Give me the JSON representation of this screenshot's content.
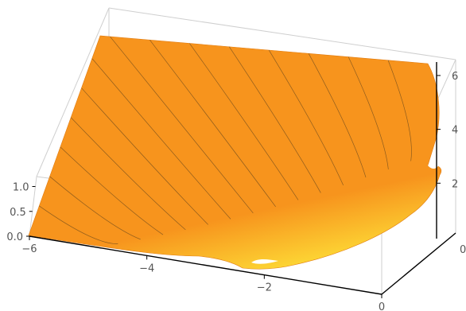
{
  "chart_data": {
    "type": "surface3d",
    "title": "",
    "axes": {
      "x": {
        "label": "",
        "range": [
          -6,
          0
        ],
        "ticks": [
          "-6",
          "-4",
          "-2",
          "0"
        ]
      },
      "y": {
        "label": "",
        "range": [
          0,
          1.2
        ],
        "ticks": [
          "0.0",
          "0.5",
          "1.0"
        ]
      },
      "z": {
        "label": "",
        "range": [
          0,
          6.5
        ],
        "ticks": [
          "2",
          "4",
          "6"
        ]
      }
    },
    "surface": {
      "fill_colors": [
        "#f7941d",
        "#fdd835"
      ],
      "contour_color": "#6b4a1e",
      "contour_count": 14
    },
    "box": {
      "visible": true,
      "edge_color": "#cfcfcf",
      "axis_color": "#000000"
    },
    "grid": false,
    "legend": "none"
  }
}
